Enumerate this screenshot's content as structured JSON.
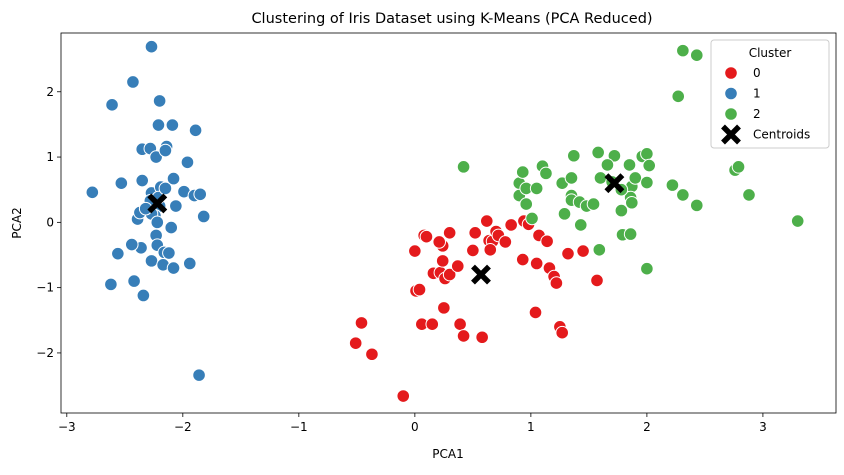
{
  "chart_data": {
    "type": "scatter",
    "title": "Clustering of Iris Dataset using K-Means (PCA Reduced)",
    "xlabel": "PCA1",
    "ylabel": "PCA2",
    "xlim": [
      -3.05,
      3.63
    ],
    "ylim": [
      -2.92,
      2.9
    ],
    "xticks": [
      -3,
      -2,
      -1,
      0,
      1,
      2,
      3
    ],
    "xtick_labels": [
      "−3",
      "−2",
      "−1",
      "0",
      "1",
      "2",
      "3"
    ],
    "yticks": [
      -2,
      -1,
      0,
      1,
      2
    ],
    "ytick_labels": [
      "−2",
      "−1",
      "0",
      "1",
      "2"
    ],
    "grid": false,
    "legend": {
      "title": "Cluster",
      "placement": "top-right",
      "entries": [
        {
          "label": "0",
          "color": "#e41a1c",
          "marker": "circle"
        },
        {
          "label": "1",
          "color": "#377eb8",
          "marker": "circle"
        },
        {
          "label": "2",
          "color": "#4daf4a",
          "marker": "circle"
        },
        {
          "label": "Centroids",
          "color": "#000000",
          "marker": "x"
        }
      ]
    },
    "series": [
      {
        "name": "0",
        "color": "#e41a1c",
        "points": [
          [
            -0.1,
            -2.66
          ],
          [
            -0.37,
            -2.02
          ],
          [
            -0.51,
            -1.85
          ],
          [
            -0.46,
            -1.54
          ],
          [
            0.01,
            -1.05
          ],
          [
            0.04,
            -1.03
          ],
          [
            0.0,
            -0.44
          ],
          [
            0.08,
            -0.2
          ],
          [
            0.1,
            -0.22
          ],
          [
            0.06,
            -1.56
          ],
          [
            0.15,
            -1.56
          ],
          [
            0.25,
            -1.31
          ],
          [
            0.16,
            -0.78
          ],
          [
            0.22,
            -0.77
          ],
          [
            0.26,
            -0.86
          ],
          [
            0.3,
            -0.8
          ],
          [
            0.24,
            -0.59
          ],
          [
            0.24,
            -0.36
          ],
          [
            0.21,
            -0.3
          ],
          [
            0.3,
            -0.16
          ],
          [
            0.37,
            -0.67
          ],
          [
            0.39,
            -1.56
          ],
          [
            0.42,
            -1.74
          ],
          [
            0.5,
            -0.43
          ],
          [
            0.52,
            -0.16
          ],
          [
            0.58,
            -1.76
          ],
          [
            0.62,
            0.02
          ],
          [
            0.64,
            -0.28
          ],
          [
            0.67,
            -0.29
          ],
          [
            0.7,
            -0.14
          ],
          [
            0.72,
            -0.2
          ],
          [
            0.65,
            -0.42
          ],
          [
            0.78,
            -0.3
          ],
          [
            0.83,
            -0.04
          ],
          [
            0.93,
            -0.57
          ],
          [
            0.94,
            0.02
          ],
          [
            0.98,
            -0.03
          ],
          [
            1.04,
            -1.38
          ],
          [
            1.05,
            -0.63
          ],
          [
            1.07,
            -0.2
          ],
          [
            1.14,
            -0.29
          ],
          [
            1.16,
            -0.7
          ],
          [
            1.2,
            -0.83
          ],
          [
            1.22,
            -0.93
          ],
          [
            1.25,
            -1.6
          ],
          [
            1.27,
            -1.69
          ],
          [
            1.32,
            -0.48
          ],
          [
            1.45,
            -0.44
          ],
          [
            1.57,
            -0.89
          ]
        ]
      },
      {
        "name": "1",
        "color": "#377eb8",
        "points": [
          [
            -2.27,
            2.69
          ],
          [
            -2.43,
            2.15
          ],
          [
            -2.61,
            1.8
          ],
          [
            -2.2,
            1.86
          ],
          [
            -2.21,
            1.49
          ],
          [
            -2.09,
            1.49
          ],
          [
            -1.89,
            1.41
          ],
          [
            -2.35,
            1.12
          ],
          [
            -2.28,
            1.13
          ],
          [
            -2.14,
            1.16
          ],
          [
            -2.23,
            1.0
          ],
          [
            -2.15,
            1.1
          ],
          [
            -1.96,
            0.92
          ],
          [
            -2.53,
            0.6
          ],
          [
            -2.35,
            0.64
          ],
          [
            -2.08,
            0.67
          ],
          [
            -2.78,
            0.46
          ],
          [
            -2.27,
            0.45
          ],
          [
            -2.19,
            0.54
          ],
          [
            -1.99,
            0.47
          ],
          [
            -1.9,
            0.41
          ],
          [
            -1.85,
            0.43
          ],
          [
            -2.2,
            0.25
          ],
          [
            -2.06,
            0.25
          ],
          [
            -2.24,
            0.1
          ],
          [
            -2.39,
            0.05
          ],
          [
            -2.27,
            0.13
          ],
          [
            -1.82,
            0.09
          ],
          [
            -2.22,
            0.0
          ],
          [
            -2.23,
            -0.2
          ],
          [
            -2.36,
            -0.39
          ],
          [
            -2.22,
            -0.35
          ],
          [
            -2.16,
            -0.46
          ],
          [
            -2.12,
            -0.47
          ],
          [
            -2.56,
            -0.48
          ],
          [
            -2.27,
            -0.59
          ],
          [
            -2.17,
            -0.65
          ],
          [
            -2.08,
            -0.7
          ],
          [
            -1.94,
            -0.63
          ],
          [
            -2.62,
            -0.95
          ],
          [
            -2.42,
            -0.9
          ],
          [
            -2.34,
            -1.12
          ],
          [
            -1.86,
            -2.34
          ],
          [
            -2.44,
            -0.34
          ],
          [
            -2.28,
            0.33
          ],
          [
            -2.37,
            0.15
          ],
          [
            -2.1,
            -0.08
          ],
          [
            -2.21,
            0.38
          ],
          [
            -2.15,
            0.52
          ],
          [
            -2.32,
            0.21
          ]
        ]
      },
      {
        "name": "2",
        "color": "#4daf4a",
        "points": [
          [
            0.42,
            0.85
          ],
          [
            0.9,
            0.6
          ],
          [
            0.93,
            0.77
          ],
          [
            0.9,
            0.41
          ],
          [
            0.96,
            0.28
          ],
          [
            0.96,
            0.52
          ],
          [
            1.01,
            0.06
          ],
          [
            1.05,
            0.52
          ],
          [
            1.1,
            0.86
          ],
          [
            1.27,
            0.6
          ],
          [
            1.35,
            0.68
          ],
          [
            1.37,
            1.02
          ],
          [
            1.35,
            0.41
          ],
          [
            1.35,
            0.34
          ],
          [
            1.42,
            0.31
          ],
          [
            1.48,
            0.25
          ],
          [
            1.54,
            0.28
          ],
          [
            1.58,
            1.07
          ],
          [
            1.6,
            0.68
          ],
          [
            1.59,
            -0.42
          ],
          [
            1.7,
            0.62
          ],
          [
            1.72,
            1.02
          ],
          [
            1.78,
            0.18
          ],
          [
            1.79,
            -0.19
          ],
          [
            1.86,
            -0.18
          ],
          [
            1.85,
            0.88
          ],
          [
            1.87,
            0.55
          ],
          [
            1.86,
            0.38
          ],
          [
            1.87,
            0.3
          ],
          [
            1.9,
            0.68
          ],
          [
            1.96,
            1.01
          ],
          [
            2.0,
            1.05
          ],
          [
            2.0,
            0.61
          ],
          [
            2.0,
            -0.71
          ],
          [
            2.02,
            0.87
          ],
          [
            2.22,
            0.57
          ],
          [
            2.27,
            1.93
          ],
          [
            2.31,
            2.63
          ],
          [
            2.31,
            0.42
          ],
          [
            2.43,
            2.56
          ],
          [
            2.43,
            0.26
          ],
          [
            2.76,
            0.8
          ],
          [
            2.79,
            0.85
          ],
          [
            2.88,
            0.42
          ],
          [
            3.3,
            0.02
          ],
          [
            1.29,
            0.13
          ],
          [
            1.66,
            0.88
          ],
          [
            1.43,
            -0.04
          ],
          [
            1.13,
            0.75
          ],
          [
            1.78,
            0.5
          ]
        ]
      }
    ],
    "centroids": {
      "name": "Centroids",
      "color": "#000000",
      "points": [
        [
          -2.22,
          0.29
        ],
        [
          0.57,
          -0.8
        ],
        [
          1.72,
          0.6
        ]
      ]
    }
  }
}
